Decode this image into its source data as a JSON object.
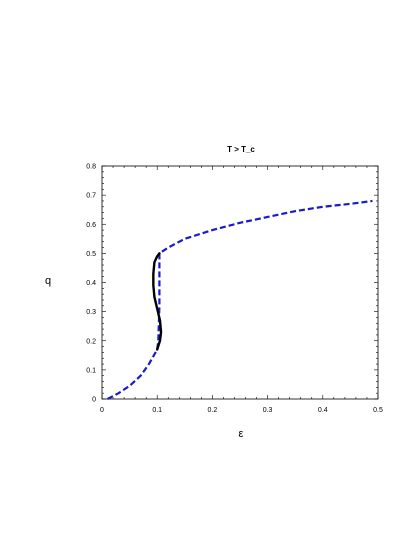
{
  "chart_data": {
    "type": "line",
    "title": "T > T_c",
    "xlabel": "ε",
    "ylabel": "q",
    "xlim": [
      0,
      0.5
    ],
    "ylim": [
      0,
      0.8
    ],
    "x_ticks": [
      0,
      0.1,
      0.2,
      0.3,
      0.4,
      0.5
    ],
    "x_tick_labels": [
      "0",
      "0.1",
      "0.2",
      "0.3",
      "0.4",
      "0.5"
    ],
    "y_ticks": [
      0,
      0.1,
      0.2,
      0.3,
      0.4,
      0.5,
      0.6,
      0.7,
      0.8
    ],
    "y_tick_labels": [
      "0",
      "0.1",
      "0.2",
      "0.3",
      "0.4",
      "0.5",
      "0.6",
      "0.7",
      "0.8"
    ],
    "grid": false,
    "series": [
      {
        "style": "dashed",
        "color": "#1a1acc",
        "points": [
          [
            0.01,
            0.0
          ],
          [
            0.03,
            0.02
          ],
          [
            0.05,
            0.045
          ],
          [
            0.07,
            0.08
          ],
          [
            0.085,
            0.12
          ],
          [
            0.1,
            0.17
          ],
          [
            0.102,
            0.2
          ],
          [
            0.103,
            0.26
          ],
          [
            0.104,
            0.32
          ],
          [
            0.104,
            0.38
          ],
          [
            0.104,
            0.44
          ],
          [
            0.104,
            0.5
          ],
          [
            0.12,
            0.52
          ],
          [
            0.15,
            0.55
          ],
          [
            0.2,
            0.58
          ],
          [
            0.25,
            0.605
          ],
          [
            0.3,
            0.625
          ],
          [
            0.35,
            0.645
          ],
          [
            0.4,
            0.66
          ],
          [
            0.45,
            0.67
          ],
          [
            0.49,
            0.68
          ]
        ]
      },
      {
        "style": "solid",
        "color": "#000000",
        "points": [
          [
            0.1,
            0.17
          ],
          [
            0.105,
            0.2
          ],
          [
            0.107,
            0.23
          ],
          [
            0.105,
            0.27
          ],
          [
            0.1,
            0.31
          ],
          [
            0.095,
            0.35
          ],
          [
            0.093,
            0.39
          ],
          [
            0.093,
            0.43
          ],
          [
            0.095,
            0.47
          ],
          [
            0.1,
            0.49
          ],
          [
            0.104,
            0.5
          ]
        ]
      }
    ]
  }
}
